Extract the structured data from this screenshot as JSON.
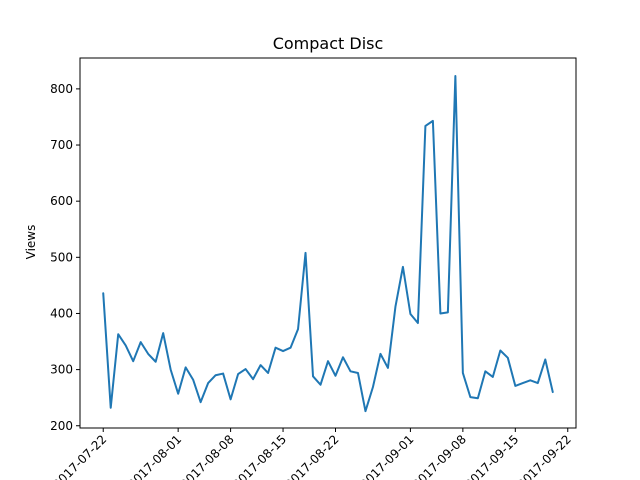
{
  "chart_data": {
    "type": "line",
    "title": "Compact Disc",
    "xlabel": "",
    "ylabel": "Views",
    "x_ticks": [
      "2017-07-22",
      "2017-08-01",
      "2017-08-08",
      "2017-08-15",
      "2017-08-22",
      "2017-09-01",
      "2017-09-08",
      "2017-09-15",
      "2017-09-22"
    ],
    "y_ticks": [
      200,
      300,
      400,
      500,
      600,
      700,
      800
    ],
    "xlim": [
      "2017-07-22",
      "2017-09-22"
    ],
    "ylim": [
      200,
      850
    ],
    "grid": false,
    "series": [
      {
        "color": "#1f77b4",
        "x": [
          "2017-07-22",
          "2017-07-23",
          "2017-07-24",
          "2017-07-25",
          "2017-07-26",
          "2017-07-27",
          "2017-07-28",
          "2017-07-29",
          "2017-07-30",
          "2017-07-31",
          "2017-08-01",
          "2017-08-02",
          "2017-08-03",
          "2017-08-04",
          "2017-08-05",
          "2017-08-06",
          "2017-08-07",
          "2017-08-08",
          "2017-08-09",
          "2017-08-10",
          "2017-08-11",
          "2017-08-12",
          "2017-08-13",
          "2017-08-14",
          "2017-08-15",
          "2017-08-16",
          "2017-08-17",
          "2017-08-18",
          "2017-08-19",
          "2017-08-20",
          "2017-08-21",
          "2017-08-22",
          "2017-08-23",
          "2017-08-24",
          "2017-08-25",
          "2017-08-26",
          "2017-08-27",
          "2017-08-28",
          "2017-08-29",
          "2017-08-30",
          "2017-08-31",
          "2017-09-01",
          "2017-09-02",
          "2017-09-03",
          "2017-09-04",
          "2017-09-05",
          "2017-09-06",
          "2017-09-07",
          "2017-09-08",
          "2017-09-09",
          "2017-09-10",
          "2017-09-11",
          "2017-09-12",
          "2017-09-13",
          "2017-09-14",
          "2017-09-15",
          "2017-09-16",
          "2017-09-17",
          "2017-09-18",
          "2017-09-19",
          "2017-09-20"
        ],
        "values": [
          436,
          232,
          363,
          343,
          315,
          349,
          328,
          314,
          365,
          300,
          257,
          304,
          282,
          242,
          276,
          290,
          293,
          247,
          292,
          301,
          283,
          308,
          294,
          339,
          333,
          339,
          372,
          508,
          288,
          273,
          315,
          289,
          322,
          297,
          294,
          226,
          269,
          328,
          303,
          412,
          483,
          399,
          383,
          734,
          743,
          400,
          402,
          823,
          294,
          251,
          249,
          297,
          287,
          334,
          321,
          271,
          276,
          281,
          276,
          318,
          260
        ]
      }
    ]
  }
}
